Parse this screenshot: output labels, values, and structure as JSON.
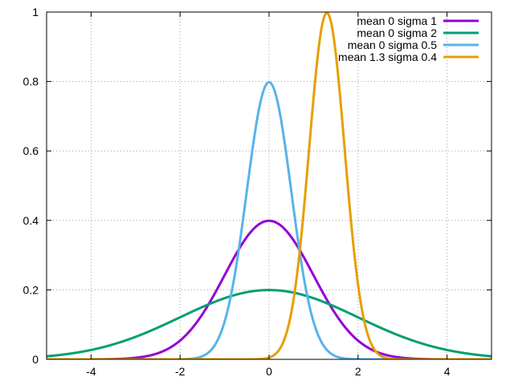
{
  "chart_data": {
    "type": "line",
    "title": "",
    "xlabel": "",
    "ylabel": "",
    "xlim": [
      -5,
      5
    ],
    "ylim": [
      0,
      1
    ],
    "x_ticks": [
      -4,
      -2,
      0,
      2,
      4
    ],
    "x_tick_labels": [
      "-4",
      "-2",
      "0",
      "2",
      "4"
    ],
    "y_ticks": [
      0,
      0.2,
      0.4,
      0.6,
      0.8,
      1
    ],
    "y_tick_labels": [
      "0",
      "0.2",
      "0.4",
      "0.6",
      "0.8",
      "1"
    ],
    "grid": true,
    "legend_position": "top-right",
    "series": [
      {
        "name": "mean 0 sigma 1",
        "function": "normal_pdf",
        "mean": 0,
        "sigma": 1,
        "color": "#9400d3"
      },
      {
        "name": "mean 0 sigma 2",
        "function": "normal_pdf",
        "mean": 0,
        "sigma": 2,
        "color": "#009e73"
      },
      {
        "name": "mean 0 sigma 0.5",
        "function": "normal_pdf",
        "mean": 0,
        "sigma": 0.5,
        "color": "#56b4e9"
      },
      {
        "name": "mean 1.3 sigma 0.4",
        "function": "normal_pdf",
        "mean": 1.3,
        "sigma": 0.4,
        "color": "#e69f00"
      }
    ]
  }
}
